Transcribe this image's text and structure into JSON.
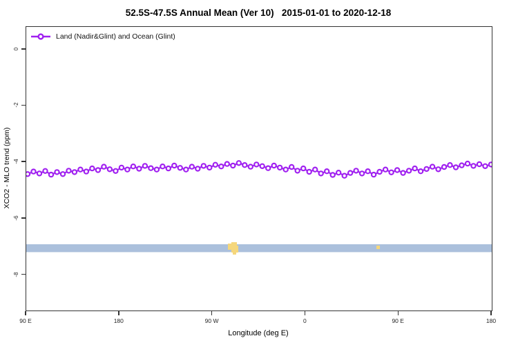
{
  "title": "52.5S-47.5S Annual Mean (Ver 10)   2015-01-01 to 2020-12-18",
  "legend": {
    "label": "Land (Nadir&Glint) and Ocean (Glint)",
    "marker": "open-circle-on-line",
    "marker_color": "#A020F0"
  },
  "axes": {
    "x": {
      "label": "Longitude (deg E)",
      "tick_labels": [
        "90 E",
        "180",
        "90 W",
        "0",
        "90 E",
        "180"
      ]
    },
    "y": {
      "label": "XCO2 - MLO trend (ppm)",
      "tick_labels": [
        "0",
        "-2",
        "-4",
        "-6",
        "-8"
      ],
      "tick_values": [
        0,
        -2,
        -4,
        -6,
        -8
      ]
    }
  },
  "colors": {
    "series": "#A020F0",
    "marker_fill": "#FFFFFF",
    "band": "#ABC0DC",
    "band_highlight": "#F5D77C",
    "axis": "#333333",
    "background": "#FFFFFF"
  },
  "chart_data": {
    "type": "line",
    "title": "52.5S-47.5S Annual Mean (Ver 10)   2015-01-01 to 2020-12-18",
    "xlabel": "Longitude (deg E)",
    "ylabel": "XCO2 - MLO trend (ppm)",
    "x_tick_labels": [
      "90 E",
      "180",
      "90 W",
      "0",
      "90 E",
      "180"
    ],
    "x_axis_note": "longitude wraps: spans 450 deg from 90E through 180, 90W, 0, 90E to 180; points evenly spaced",
    "y_ticks": [
      0,
      -2,
      -4,
      -6,
      -8
    ],
    "ylim": [
      -9.3,
      0.8
    ],
    "grid": false,
    "legend_position": "top-left-inside",
    "series": [
      {
        "name": "Land (Nadir&Glint) and Ocean (Glint)",
        "color": "#A020F0",
        "marker": "open-circle",
        "values": [
          -4.42,
          -4.33,
          -4.4,
          -4.31,
          -4.44,
          -4.35,
          -4.42,
          -4.3,
          -4.35,
          -4.26,
          -4.33,
          -4.22,
          -4.28,
          -4.16,
          -4.25,
          -4.31,
          -4.19,
          -4.26,
          -4.15,
          -4.23,
          -4.13,
          -4.21,
          -4.26,
          -4.15,
          -4.22,
          -4.12,
          -4.2,
          -4.26,
          -4.16,
          -4.23,
          -4.13,
          -4.19,
          -4.09,
          -4.15,
          -4.06,
          -4.12,
          -4.03,
          -4.1,
          -4.16,
          -4.08,
          -4.14,
          -4.21,
          -4.12,
          -4.19,
          -4.26,
          -4.17,
          -4.3,
          -4.22,
          -4.34,
          -4.26,
          -4.4,
          -4.32,
          -4.45,
          -4.37,
          -4.48,
          -4.38,
          -4.3,
          -4.4,
          -4.32,
          -4.44,
          -4.34,
          -4.26,
          -4.36,
          -4.28,
          -4.38,
          -4.3,
          -4.22,
          -4.32,
          -4.24,
          -4.16,
          -4.25,
          -4.17,
          -4.1,
          -4.18,
          -4.11,
          -4.05,
          -4.13,
          -4.07,
          -4.14,
          -4.08
        ]
      }
    ],
    "band": {
      "description": "solid light-blue horizontal band spanning full x-range",
      "y_center": -7.05,
      "y_half_width": 0.14,
      "color": "#ABC0DC",
      "highlights": [
        {
          "x_fraction": 0.435,
          "color": "#F5D77C",
          "note": "yellow patch over band"
        },
        {
          "x_fraction": 0.755,
          "color": "#F5D77C",
          "note": "small yellow speck"
        }
      ]
    }
  }
}
